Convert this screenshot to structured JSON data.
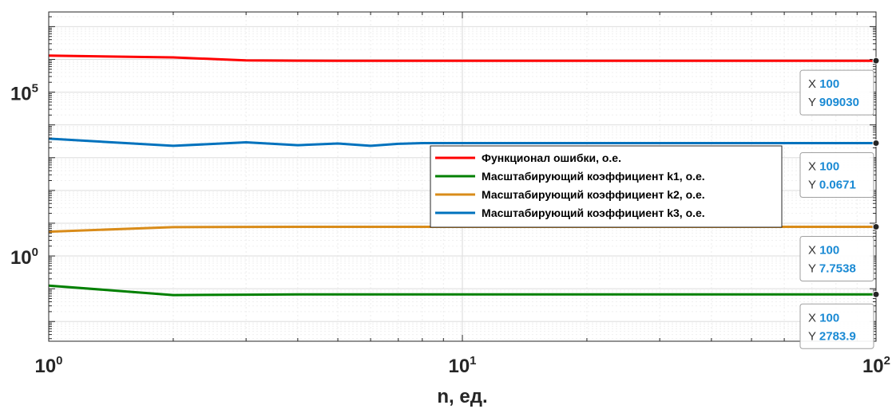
{
  "chart_data": {
    "type": "line",
    "title": "",
    "xlabel": "n, ед.",
    "ylabel": "",
    "xscale": "log",
    "yscale": "log",
    "xlim": [
      1,
      100
    ],
    "ylim": [
      0.0025,
      28000000
    ],
    "grid": true,
    "legend_position": "center-right",
    "x_ticks": [
      {
        "value": 1,
        "base": "10",
        "exp": "0"
      },
      {
        "value": 10,
        "base": "10",
        "exp": "1"
      },
      {
        "value": 100,
        "base": "10",
        "exp": "2"
      }
    ],
    "y_ticks": [
      {
        "value": 1,
        "base": "10",
        "exp": "0"
      },
      {
        "value": 100000,
        "base": "10",
        "exp": "5"
      }
    ],
    "series": [
      {
        "name": "Функционал ошибки, о.е.",
        "color": "#ff0000",
        "x": [
          1,
          2,
          3,
          4,
          5,
          6,
          7,
          8,
          9,
          10,
          20,
          50,
          100
        ],
        "y": [
          1300000,
          1150000,
          930000,
          915000,
          910000,
          909500,
          909200,
          909100,
          909050,
          909030,
          909030,
          909030,
          909030
        ]
      },
      {
        "name": "Масштабирующий коэффициент k1, о.е.",
        "color": "#008000",
        "x": [
          1,
          2,
          3,
          4,
          5,
          6,
          7,
          8,
          9,
          10,
          20,
          50,
          100
        ],
        "y": [
          0.125,
          0.064,
          0.066,
          0.067,
          0.0671,
          0.0671,
          0.0671,
          0.0671,
          0.0671,
          0.0671,
          0.0671,
          0.0671,
          0.0671
        ]
      },
      {
        "name": "Масштабирующий коэффициент k2, о.е.",
        "color": "#d98c1a",
        "x": [
          1,
          2,
          3,
          4,
          5,
          6,
          7,
          8,
          9,
          10,
          20,
          50,
          100
        ],
        "y": [
          5.5,
          7.6,
          7.7,
          7.75,
          7.75,
          7.7538,
          7.7538,
          7.7538,
          7.7538,
          7.7538,
          7.7538,
          7.7538,
          7.7538
        ]
      },
      {
        "name": "Масштабирующий коэффициент k3, о.е.",
        "color": "#0072bd",
        "x": [
          1,
          2,
          3,
          4,
          5,
          6,
          7,
          8,
          9,
          10,
          20,
          50,
          100
        ],
        "y": [
          3800,
          2300,
          2950,
          2400,
          2700,
          2300,
          2650,
          2780,
          2783.9,
          2783.9,
          2783.9,
          2783.9,
          2783.9
        ]
      }
    ],
    "datatips": [
      {
        "x_key": "X",
        "x_val": "100",
        "y_key": "Y",
        "y_val": "909030"
      },
      {
        "x_key": "X",
        "x_val": "100",
        "y_key": "Y",
        "y_val": "2783.9"
      },
      {
        "x_key": "X",
        "x_val": "100",
        "y_key": "Y",
        "y_val": "7.7538"
      },
      {
        "x_key": "X",
        "x_val": "100",
        "y_key": "Y",
        "y_val": "0.0671"
      }
    ]
  }
}
